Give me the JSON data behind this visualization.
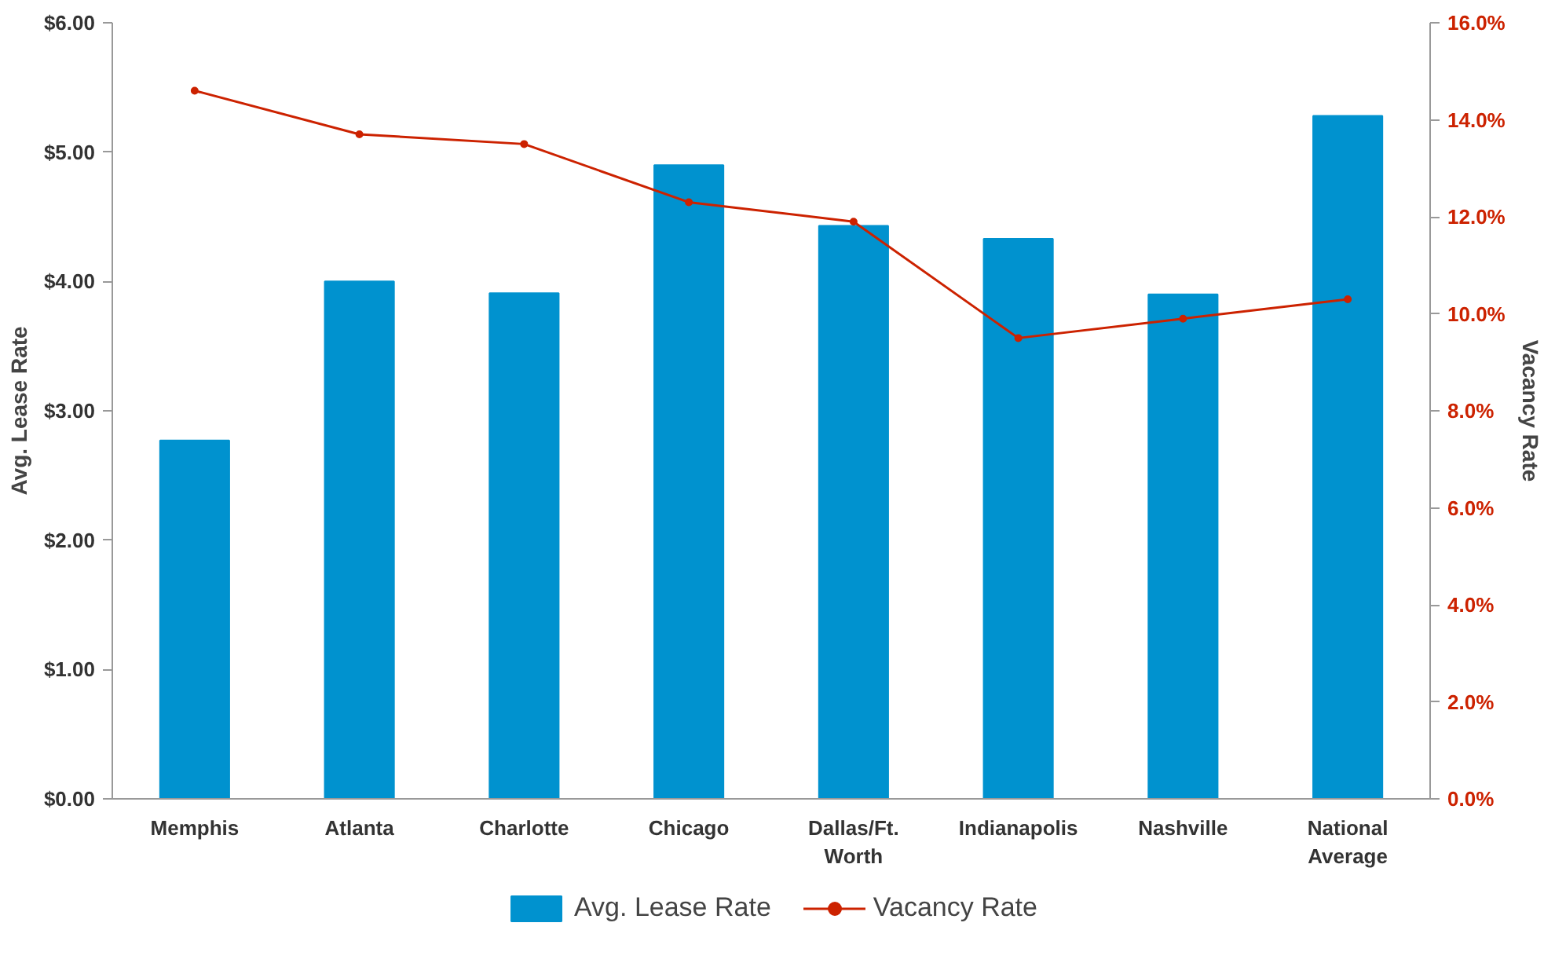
{
  "chart_data": {
    "type": "bar",
    "xlabel": null,
    "ylabel": "Avg. Lease Rate",
    "y2label": "Vacancy Rate",
    "categories": [
      "Memphis",
      "Atlanta",
      "Charlotte",
      "Chicago",
      "Dallas/Ft. Worth",
      "Indianapolis",
      "Nashville",
      "National Average"
    ],
    "series": [
      {
        "name": "Avg. Lease Rate",
        "color": "#0092cf",
        "values": [
          2.77,
          4.0,
          3.91,
          4.9,
          4.43,
          4.33,
          3.9,
          5.28
        ]
      },
      {
        "name": "Vacancy Rate",
        "type": "line",
        "axis": "y2",
        "color": "#cc2200",
        "marker": "circle",
        "values": [
          14.6,
          13.7,
          13.5,
          12.3,
          11.9,
          9.5,
          9.9,
          10.3
        ]
      }
    ],
    "ylim": [
      0,
      6
    ],
    "yticks": [
      {
        "value": 0,
        "label": "$0.00"
      },
      {
        "value": 1,
        "label": "$1.00"
      },
      {
        "value": 2,
        "label": "$2.00"
      },
      {
        "value": 3,
        "label": "$3.00"
      },
      {
        "value": 4,
        "label": "$4.00"
      },
      {
        "value": 5,
        "label": "$5.00"
      },
      {
        "value": 6,
        "label": "$6.00"
      }
    ],
    "y2lim": [
      0,
      16
    ],
    "y2ticks": [
      {
        "value": 0,
        "label": "0.0%"
      },
      {
        "value": 2,
        "label": "2.0%"
      },
      {
        "value": 4,
        "label": "4.0%"
      },
      {
        "value": 6,
        "label": "6.0%"
      },
      {
        "value": 8,
        "label": "8.0%"
      },
      {
        "value": 10,
        "label": "10.0%"
      },
      {
        "value": 12,
        "label": "12.0%"
      },
      {
        "value": 14,
        "label": "14.0%"
      },
      {
        "value": 16,
        "label": "16.0%"
      }
    ],
    "grid": false,
    "legend": "bottom"
  }
}
